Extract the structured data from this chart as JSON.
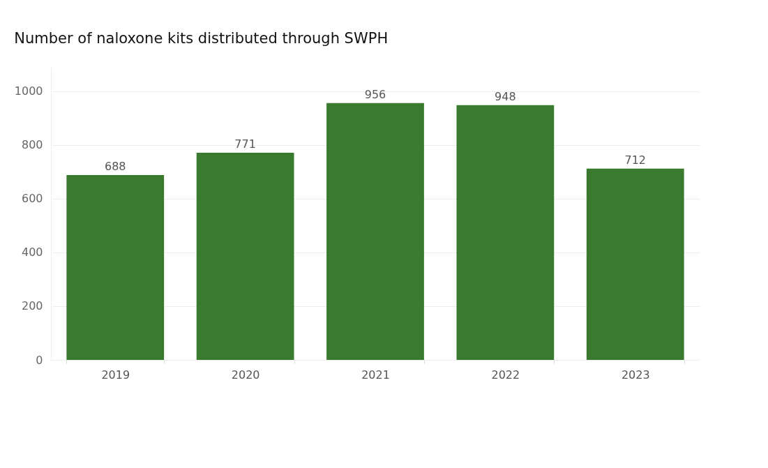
{
  "chart_data": {
    "type": "bar",
    "title": "Number of naloxone kits distributed through SWPH",
    "categories": [
      "2019",
      "2020",
      "2021",
      "2022",
      "2023"
    ],
    "values": [
      688,
      771,
      956,
      948,
      712
    ],
    "color": "#3a7a2e",
    "ylim": [
      0,
      1090
    ],
    "yticks": [
      0,
      200,
      400,
      600,
      800,
      1000
    ],
    "grid": "y",
    "data_labels": true
  }
}
